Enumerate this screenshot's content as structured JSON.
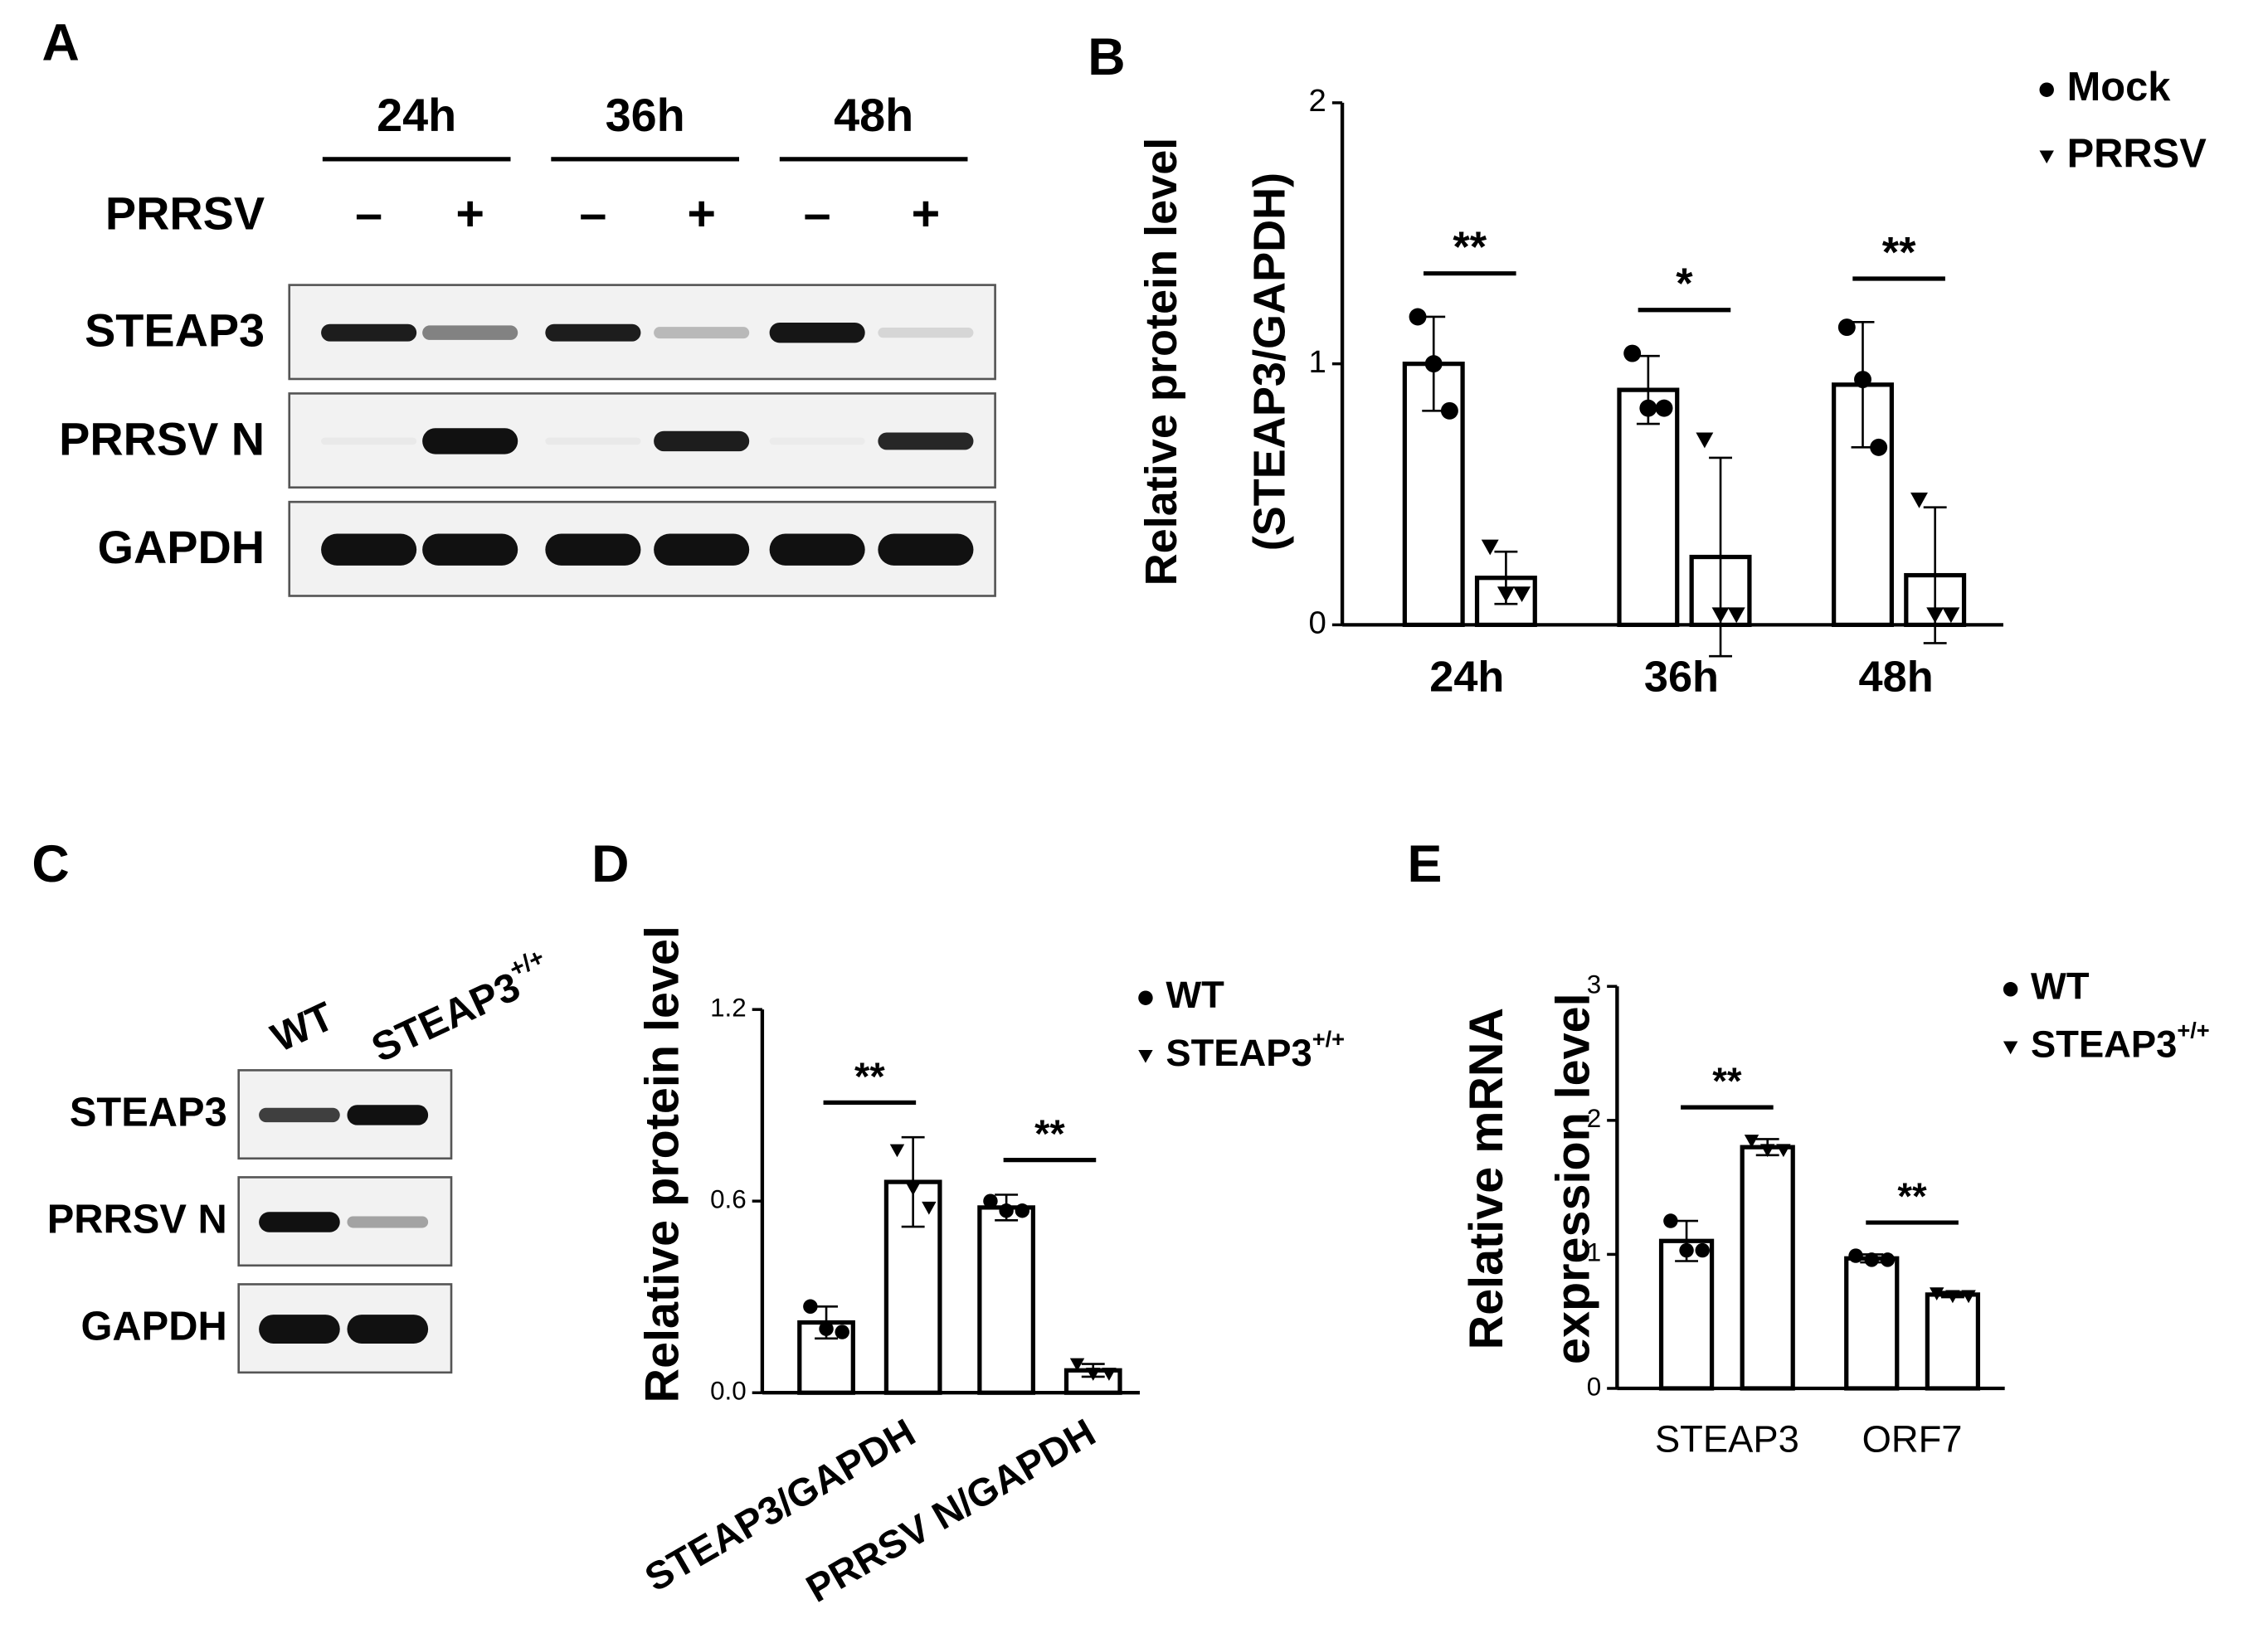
{
  "panel_labels": [
    "A",
    "B",
    "C",
    "D",
    "E"
  ],
  "blot_A": {
    "times": [
      "24h",
      "36h",
      "48h"
    ],
    "treatment": "PRRSV",
    "signs": [
      "–",
      "+",
      "–",
      "+",
      "–",
      "+"
    ],
    "rows": [
      "STEAP3",
      "PRRSV N",
      "GAPDH"
    ]
  },
  "blot_C": {
    "lanes": [
      "WT",
      {
        "text": "STEAP3",
        "sup": "+/+"
      }
    ],
    "rows": [
      "STEAP3",
      "PRRSV N",
      "GAPDH"
    ]
  },
  "chart_data": [
    {
      "type": "bar",
      "ylabel": [
        "Relative protein level",
        "(STEAP3/GAPDH)"
      ],
      "categories": [
        "24h",
        "36h",
        "48h"
      ],
      "series": [
        {
          "name": "Mock",
          "marker": "circle",
          "color": "#000000",
          "values": [
            1.0,
            0.9,
            0.92
          ],
          "errors": [
            0.18,
            0.13,
            0.24
          ],
          "points": [
            [
              1.18,
              1.0,
              0.82
            ],
            [
              1.04,
              0.83,
              0.83
            ],
            [
              1.14,
              0.94,
              0.68
            ]
          ]
        },
        {
          "name": "PRRSV",
          "marker": "triangle",
          "color": "#000000",
          "values": [
            0.18,
            0.26,
            0.19
          ],
          "errors": [
            0.1,
            0.38,
            0.26
          ],
          "points": [
            [
              0.3,
              0.12,
              0.12
            ],
            [
              0.71,
              0.04,
              0.04
            ],
            [
              0.48,
              0.04,
              0.04
            ]
          ]
        }
      ],
      "significance": [
        "**",
        "*",
        "**"
      ],
      "ylim": [
        0,
        2
      ],
      "yticks": [
        0,
        1,
        2
      ]
    },
    {
      "type": "bar",
      "ylabel": [
        "Relative protein level"
      ],
      "categories": [
        "STEAP3/GAPDH",
        "PRRSV N/GAPDH"
      ],
      "series": [
        {
          "name": "WT",
          "marker": "circle",
          "color": "#000000",
          "values": [
            0.22,
            0.58
          ],
          "errors": [
            0.05,
            0.04
          ],
          "points": [
            [
              0.27,
              0.2,
              0.19
            ],
            [
              0.6,
              0.57,
              0.57
            ]
          ]
        },
        {
          "name": "STEAP3",
          "name_sup": "+/+",
          "marker": "triangle",
          "color": "#000000",
          "values": [
            0.66,
            0.07
          ],
          "errors": [
            0.14,
            0.02
          ],
          "points": [
            [
              0.76,
              0.64,
              0.58
            ],
            [
              0.09,
              0.06,
              0.06
            ]
          ]
        }
      ],
      "significance": [
        "**",
        "**"
      ],
      "ylim": [
        0,
        1.2
      ],
      "yticks": [
        {
          "value": 0,
          "label": "0.0"
        },
        0.6,
        1.2
      ]
    },
    {
      "type": "bar",
      "ylabel": [
        "Relative mRNA",
        "expression level"
      ],
      "categories": [
        "STEAP3",
        "ORF7"
      ],
      "series": [
        {
          "name": "WT",
          "marker": "circle",
          "color": "#000000",
          "values": [
            1.1,
            0.97
          ],
          "errors": [
            0.15,
            0.03
          ],
          "points": [
            [
              1.25,
              1.03,
              1.03
            ],
            [
              0.99,
              0.96,
              0.96
            ]
          ]
        },
        {
          "name": "STEAP3",
          "name_sup": "+/+",
          "marker": "triangle",
          "color": "#000000",
          "values": [
            1.8,
            0.7
          ],
          "errors": [
            0.06,
            0.02
          ],
          "points": [
            [
              1.85,
              1.78,
              1.78
            ],
            [
              0.71,
              0.69,
              0.69
            ]
          ]
        }
      ],
      "significance": [
        "**",
        "**"
      ],
      "ylim": [
        0,
        3
      ],
      "yticks": [
        0,
        1,
        2,
        3
      ]
    }
  ]
}
